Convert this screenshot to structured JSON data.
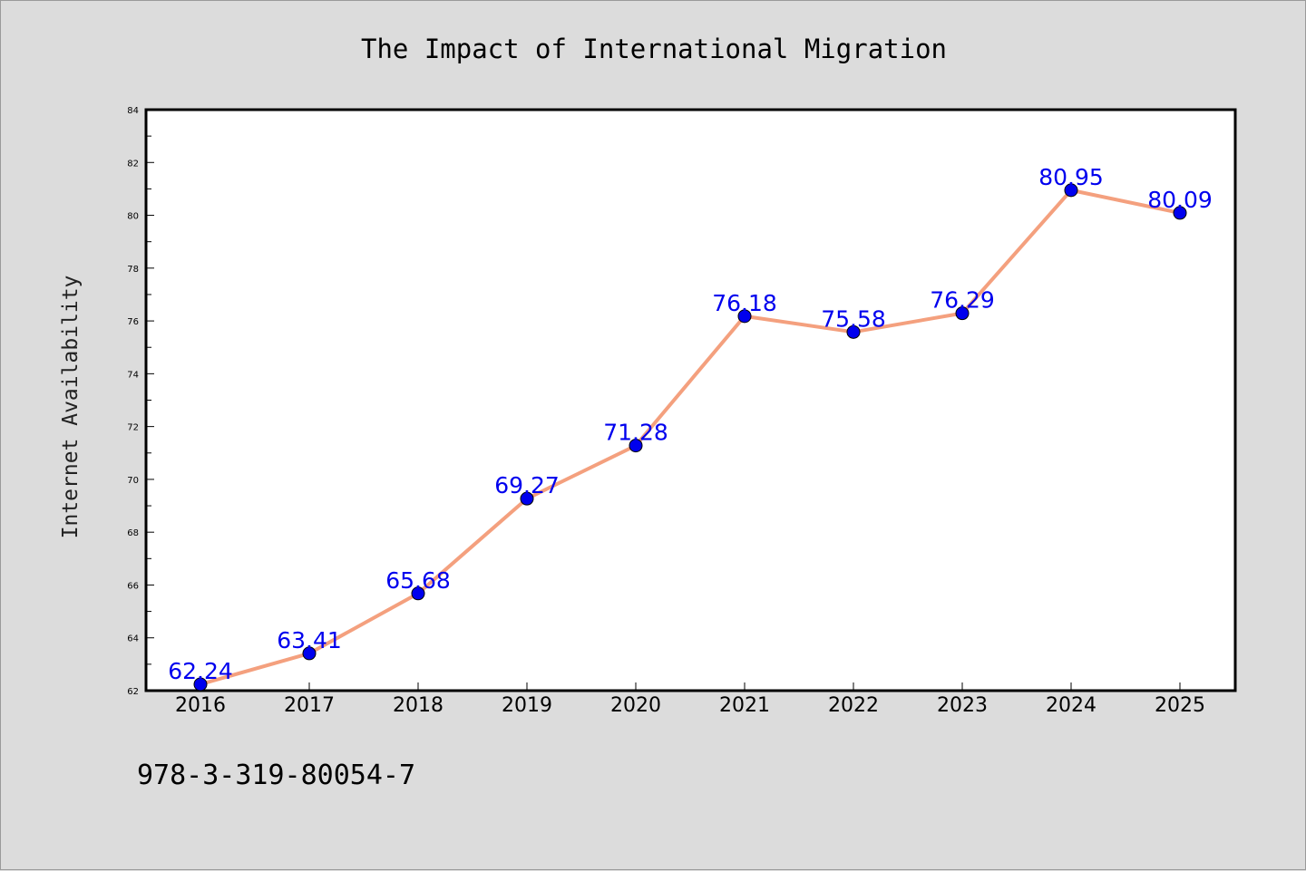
{
  "chart_data": {
    "type": "line",
    "title": "The Impact of International Migration",
    "xlabel": "",
    "ylabel": "Internet Availability",
    "categories": [
      "2016",
      "2017",
      "2018",
      "2019",
      "2020",
      "2021",
      "2022",
      "2023",
      "2024",
      "2025"
    ],
    "series": [
      {
        "values": [
          62.24,
          63.41,
          65.68,
          69.27,
          71.28,
          76.18,
          75.58,
          76.29,
          80.95,
          80.09
        ],
        "data_labels": [
          "62.24",
          "63.41",
          "65.68",
          "69.27",
          "71.28",
          "76.18",
          "75.58",
          "76.29",
          "80.95",
          "80.09"
        ],
        "line_color": "#f4a07e",
        "marker_color": "#0000ee"
      }
    ],
    "ylim": [
      62,
      84
    ],
    "yticks": [
      "62",
      "64",
      "66",
      "68",
      "70",
      "72",
      "74",
      "76",
      "78",
      "80",
      "82",
      "84"
    ],
    "grid": false,
    "legend": "none",
    "label_color": "#0000ee"
  },
  "footer": {
    "isbn": "978-3-319-80054-7"
  },
  "colors": {
    "background": "#dcdcdc",
    "plot_background": "#ffffff"
  }
}
